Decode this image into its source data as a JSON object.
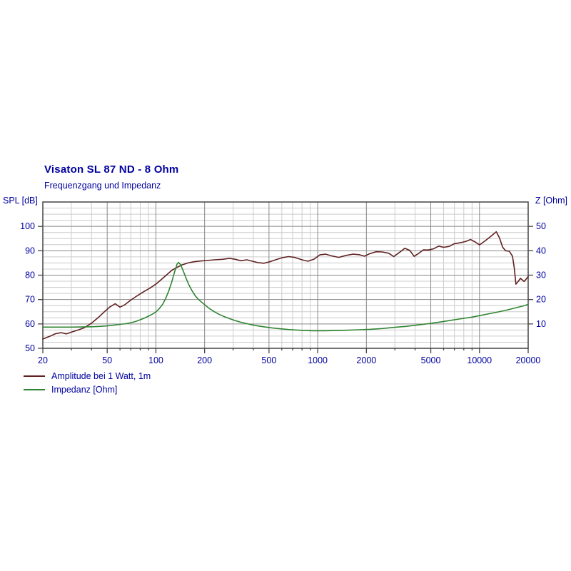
{
  "header": {
    "title": "Visaton SL 87 ND - 8 Ohm",
    "subtitle": "Frequenzgang und Impedanz"
  },
  "axes": {
    "left_label": "SPL [dB]",
    "right_label": "Z [Ohm]"
  },
  "legend": [
    {
      "label": "Amplitude bei 1 Watt, 1m",
      "color": "#602020"
    },
    {
      "label": "Impedanz [Ohm]",
      "color": "#2f8532"
    }
  ],
  "colors": {
    "text": "#0000A0",
    "grid_minor": "#cccccc",
    "grid_major": "#888888",
    "border": "#444444",
    "amplitude": "#602020",
    "impedance": "#2f8532"
  },
  "chart_data": {
    "type": "line",
    "title": "Visaton SL 87 ND - 8 Ohm",
    "subtitle": "Frequenzgang und Impedanz",
    "x_scale": "log",
    "x_range": [
      20,
      20000
    ],
    "x_ticks": [
      20,
      50,
      100,
      200,
      500,
      1000,
      2000,
      5000,
      10000,
      20000
    ],
    "y_left": {
      "label": "SPL [dB]",
      "range": [
        50,
        110
      ],
      "ticks": [
        50,
        60,
        70,
        80,
        90,
        100
      ],
      "minor_step": 2.5,
      "major_step": 10
    },
    "y_right": {
      "label": "Z [Ohm]",
      "range": [
        0,
        60
      ],
      "ticks": [
        10,
        20,
        30,
        40,
        50
      ]
    },
    "grid": "on",
    "legend_position": "bottom-left",
    "series": [
      {
        "name": "Amplitude bei 1 Watt, 1m",
        "axis": "left",
        "unit": "dB",
        "color": "#602020",
        "points": [
          [
            20,
            53.8
          ],
          [
            22,
            54.9
          ],
          [
            24,
            56.0
          ],
          [
            26,
            56.4
          ],
          [
            28,
            55.9
          ],
          [
            30,
            56.6
          ],
          [
            33,
            57.5
          ],
          [
            36,
            58.4
          ],
          [
            40,
            60.3
          ],
          [
            44,
            62.6
          ],
          [
            48,
            65.0
          ],
          [
            52,
            67.0
          ],
          [
            56,
            68.3
          ],
          [
            60,
            66.9
          ],
          [
            64,
            67.8
          ],
          [
            70,
            69.8
          ],
          [
            76,
            71.4
          ],
          [
            84,
            73.2
          ],
          [
            92,
            74.7
          ],
          [
            100,
            76.3
          ],
          [
            108,
            78.2
          ],
          [
            116,
            80.0
          ],
          [
            125,
            81.9
          ],
          [
            135,
            83.2
          ],
          [
            145,
            84.2
          ],
          [
            158,
            85.0
          ],
          [
            172,
            85.5
          ],
          [
            188,
            85.8
          ],
          [
            205,
            86.0
          ],
          [
            230,
            86.3
          ],
          [
            258,
            86.5
          ],
          [
            285,
            86.9
          ],
          [
            310,
            86.5
          ],
          [
            335,
            85.9
          ],
          [
            365,
            86.3
          ],
          [
            395,
            85.7
          ],
          [
            430,
            85.1
          ],
          [
            465,
            84.9
          ],
          [
            500,
            85.4
          ],
          [
            545,
            86.2
          ],
          [
            600,
            87.1
          ],
          [
            660,
            87.6
          ],
          [
            720,
            87.3
          ],
          [
            800,
            86.3
          ],
          [
            870,
            85.7
          ],
          [
            950,
            86.6
          ],
          [
            1030,
            88.3
          ],
          [
            1120,
            88.6
          ],
          [
            1220,
            87.9
          ],
          [
            1350,
            87.3
          ],
          [
            1500,
            88.1
          ],
          [
            1650,
            88.6
          ],
          [
            1800,
            88.4
          ],
          [
            1950,
            87.8
          ],
          [
            2100,
            88.8
          ],
          [
            2300,
            89.6
          ],
          [
            2500,
            89.5
          ],
          [
            2750,
            89.0
          ],
          [
            2950,
            87.6
          ],
          [
            3200,
            89.3
          ],
          [
            3450,
            91.0
          ],
          [
            3700,
            90.2
          ],
          [
            3950,
            87.7
          ],
          [
            4200,
            88.9
          ],
          [
            4500,
            90.4
          ],
          [
            4800,
            90.3
          ],
          [
            5200,
            90.8
          ],
          [
            5600,
            91.9
          ],
          [
            6000,
            91.4
          ],
          [
            6500,
            91.8
          ],
          [
            7000,
            92.9
          ],
          [
            7600,
            93.3
          ],
          [
            8200,
            93.8
          ],
          [
            8800,
            94.6
          ],
          [
            9400,
            93.6
          ],
          [
            10000,
            92.4
          ],
          [
            10700,
            93.8
          ],
          [
            11500,
            95.4
          ],
          [
            12100,
            96.6
          ],
          [
            12700,
            97.8
          ],
          [
            13300,
            95.3
          ],
          [
            13900,
            91.5
          ],
          [
            14500,
            90.0
          ],
          [
            15300,
            89.8
          ],
          [
            16000,
            87.8
          ],
          [
            16400,
            83.0
          ],
          [
            16800,
            76.3
          ],
          [
            17400,
            77.5
          ],
          [
            17900,
            78.7
          ],
          [
            18900,
            77.4
          ],
          [
            20000,
            79.4
          ]
        ]
      },
      {
        "name": "Impedanz [Ohm]",
        "axis": "right",
        "unit": "Ohm",
        "color": "#2f8532",
        "points": [
          [
            20,
            8.7
          ],
          [
            25,
            8.7
          ],
          [
            30,
            8.7
          ],
          [
            35,
            8.75
          ],
          [
            40,
            8.85
          ],
          [
            45,
            9.0
          ],
          [
            50,
            9.2
          ],
          [
            55,
            9.5
          ],
          [
            60,
            9.8
          ],
          [
            65,
            10.1
          ],
          [
            70,
            10.5
          ],
          [
            75,
            11.0
          ],
          [
            80,
            11.7
          ],
          [
            85,
            12.4
          ],
          [
            90,
            13.2
          ],
          [
            95,
            14.0
          ],
          [
            100,
            14.9
          ],
          [
            105,
            16.3
          ],
          [
            110,
            18.0
          ],
          [
            115,
            20.5
          ],
          [
            120,
            23.5
          ],
          [
            125,
            27.0
          ],
          [
            130,
            31.0
          ],
          [
            135,
            34.5
          ],
          [
            138,
            35.2
          ],
          [
            142,
            34.3
          ],
          [
            147,
            32.0
          ],
          [
            153,
            29.0
          ],
          [
            160,
            26.0
          ],
          [
            168,
            23.4
          ],
          [
            176,
            21.3
          ],
          [
            185,
            19.8
          ],
          [
            195,
            18.5
          ],
          [
            205,
            17.3
          ],
          [
            215,
            16.2
          ],
          [
            230,
            15.0
          ],
          [
            245,
            14.0
          ],
          [
            262,
            13.1
          ],
          [
            282,
            12.3
          ],
          [
            305,
            11.5
          ],
          [
            330,
            10.8
          ],
          [
            360,
            10.2
          ],
          [
            395,
            9.6
          ],
          [
            435,
            9.1
          ],
          [
            480,
            8.7
          ],
          [
            530,
            8.3
          ],
          [
            590,
            8.0
          ],
          [
            660,
            7.7
          ],
          [
            740,
            7.5
          ],
          [
            830,
            7.3
          ],
          [
            940,
            7.2
          ],
          [
            1100,
            7.2
          ],
          [
            1300,
            7.3
          ],
          [
            1500,
            7.4
          ],
          [
            1800,
            7.6
          ],
          [
            2100,
            7.8
          ],
          [
            2500,
            8.1
          ],
          [
            3000,
            8.6
          ],
          [
            3500,
            9.0
          ],
          [
            4200,
            9.6
          ],
          [
            5000,
            10.2
          ],
          [
            6000,
            11.0
          ],
          [
            7000,
            11.7
          ],
          [
            8000,
            12.3
          ],
          [
            9000,
            12.8
          ],
          [
            10000,
            13.4
          ],
          [
            11500,
            14.2
          ],
          [
            13000,
            14.9
          ],
          [
            15000,
            15.8
          ],
          [
            17000,
            16.7
          ],
          [
            18500,
            17.3
          ],
          [
            20000,
            18.0
          ]
        ]
      }
    ]
  }
}
